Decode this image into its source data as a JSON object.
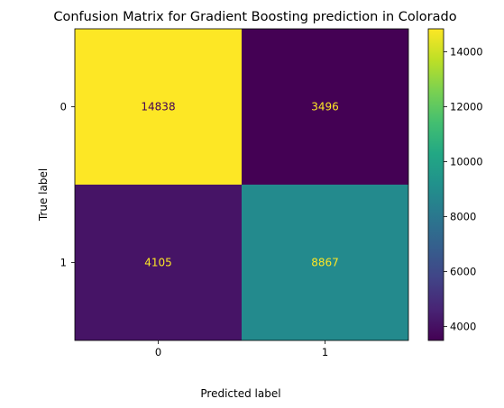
{
  "chart_data": {
    "type": "heatmap",
    "title": "Confusion Matrix for Gradient Boosting prediction in Colorado",
    "xlabel": "Predicted label",
    "ylabel": "True label",
    "x_categories": [
      "0",
      "1"
    ],
    "y_categories": [
      "0",
      "1"
    ],
    "matrix": [
      [
        14838,
        3496
      ],
      [
        4105,
        8867
      ]
    ],
    "colormap": "viridis",
    "colorbar": {
      "range": [
        3496,
        14838
      ],
      "ticks": [
        4000,
        6000,
        8000,
        10000,
        12000,
        14000
      ]
    },
    "text_colors": {
      "on_light": "#440154",
      "on_dark": "#fde725"
    }
  }
}
